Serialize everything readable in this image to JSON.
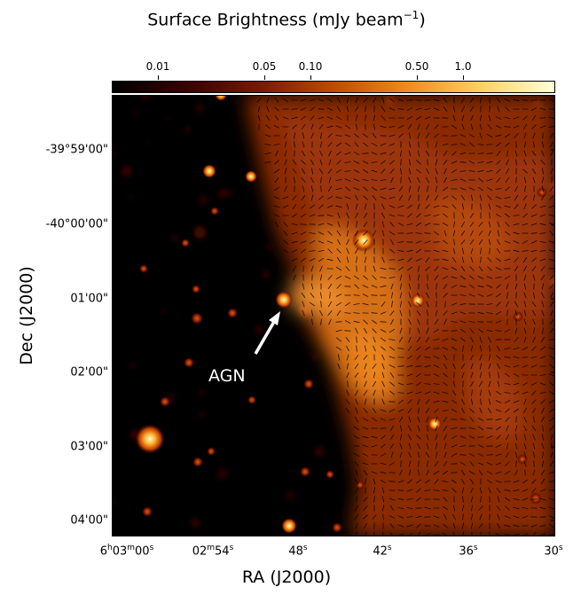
{
  "figure": {
    "title_main": "Surface Brightness (mJy beam",
    "title_exp": "−1",
    "title_close": ")",
    "x_axis_title": "RA (J2000)",
    "y_axis_title": "Dec (J2000)",
    "annotation": "AGN"
  },
  "colorbar": {
    "ticks": [
      "0.01",
      "0.05",
      "0.10",
      "0.50",
      "1.0"
    ],
    "colormap": "afmhot",
    "colors": [
      "#000000",
      "#3a0000",
      "#7a1800",
      "#c04a00",
      "#f08a20",
      "#ffd060",
      "#ffffd8"
    ]
  },
  "axes": {
    "yticks": [
      "-39°59'00\"",
      "-40°00'00\"",
      "01'00\"",
      "02'00\"",
      "03'00\"",
      "04'00\""
    ],
    "xticks": [
      {
        "h": "6",
        "m": "03",
        "s": "00"
      },
      {
        "m": "02",
        "s": "54"
      },
      {
        "s": "48"
      },
      {
        "s": "42"
      },
      {
        "s": "36"
      },
      {
        "s": "30"
      }
    ]
  }
}
